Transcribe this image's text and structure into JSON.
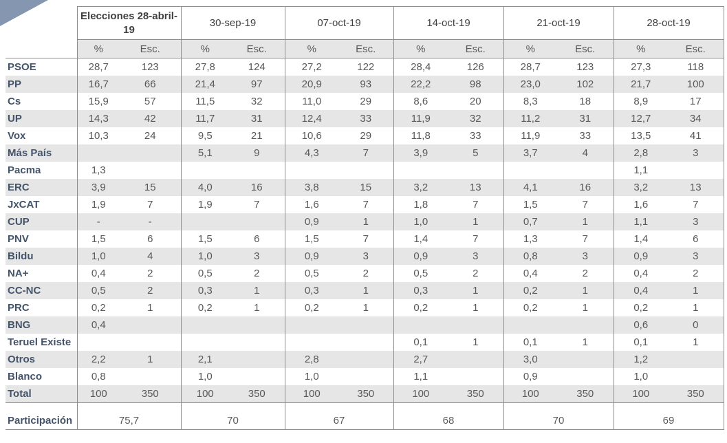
{
  "header": {
    "dates": [
      "Elecciones 28-abril-19",
      "30-sep-19",
      "07-oct-19",
      "14-oct-19",
      "21-oct-19",
      "28-oct-19"
    ],
    "pct_label": "%",
    "seats_label": "Esc."
  },
  "rows": [
    {
      "party": "PSOE",
      "cells": [
        "28,7",
        "123",
        "27,8",
        "124",
        "27,2",
        "122",
        "28,4",
        "126",
        "28,7",
        "123",
        "27,3",
        "118"
      ]
    },
    {
      "party": "PP",
      "cells": [
        "16,7",
        "66",
        "21,4",
        "97",
        "20,9",
        "93",
        "22,2",
        "98",
        "23,0",
        "102",
        "21,7",
        "100"
      ]
    },
    {
      "party": "Cs",
      "cells": [
        "15,9",
        "57",
        "11,5",
        "32",
        "11,0",
        "29",
        "8,6",
        "20",
        "8,3",
        "18",
        "8,9",
        "17"
      ]
    },
    {
      "party": "UP",
      "cells": [
        "14,3",
        "42",
        "11,7",
        "31",
        "12,4",
        "33",
        "11,9",
        "32",
        "11,2",
        "31",
        "12,7",
        "34"
      ]
    },
    {
      "party": "Vox",
      "cells": [
        "10,3",
        "24",
        "9,5",
        "21",
        "10,6",
        "29",
        "11,8",
        "33",
        "11,9",
        "33",
        "13,5",
        "41"
      ]
    },
    {
      "party": "Más País",
      "cells": [
        "",
        "",
        "5,1",
        "9",
        "4,3",
        "7",
        "3,9",
        "5",
        "3,7",
        "4",
        "2,8",
        "3"
      ]
    },
    {
      "party": "Pacma",
      "cells": [
        "1,3",
        "",
        "",
        "",
        "",
        "",
        "",
        "",
        "",
        "",
        "1,1",
        ""
      ]
    },
    {
      "party": "ERC",
      "cells": [
        "3,9",
        "15",
        "4,0",
        "16",
        "3,8",
        "15",
        "3,2",
        "13",
        "4,1",
        "16",
        "3,2",
        "13"
      ]
    },
    {
      "party": "JxCAT",
      "cells": [
        "1,9",
        "7",
        "1,9",
        "7",
        "1,6",
        "7",
        "1,8",
        "7",
        "1,5",
        "7",
        "1,6",
        "7"
      ]
    },
    {
      "party": "CUP",
      "cells": [
        "-",
        "-",
        "",
        "",
        "0,9",
        "1",
        "1,0",
        "1",
        "0,7",
        "1",
        "1,1",
        "3"
      ]
    },
    {
      "party": "PNV",
      "cells": [
        "1,5",
        "6",
        "1,5",
        "6",
        "1,5",
        "7",
        "1,4",
        "7",
        "1,3",
        "7",
        "1,4",
        "6"
      ]
    },
    {
      "party": "Bildu",
      "cells": [
        "1,0",
        "4",
        "1,0",
        "3",
        "0,9",
        "3",
        "0,9",
        "3",
        "0,8",
        "3",
        "0,9",
        "3"
      ]
    },
    {
      "party": "NA+",
      "cells": [
        "0,4",
        "2",
        "0,5",
        "2",
        "0,5",
        "2",
        "0,5",
        "2",
        "0,4",
        "2",
        "0,4",
        "2"
      ]
    },
    {
      "party": "CC-NC",
      "cells": [
        "0,5",
        "2",
        "0,3",
        "1",
        "0,3",
        "1",
        "0,3",
        "1",
        "0,2",
        "1",
        "0,4",
        "1"
      ]
    },
    {
      "party": "PRC",
      "cells": [
        "0,2",
        "1",
        "0,2",
        "1",
        "0,2",
        "1",
        "0,2",
        "1",
        "0,2",
        "1",
        "0,2",
        "1"
      ]
    },
    {
      "party": "BNG",
      "cells": [
        "0,4",
        "",
        "",
        "",
        "",
        "",
        "",
        "",
        "",
        "",
        "0,6",
        "0"
      ]
    },
    {
      "party": "Teruel Existe",
      "cells": [
        "",
        "",
        "",
        "",
        "",
        "",
        "0,1",
        "1",
        "0,1",
        "1",
        "0,1",
        "1"
      ]
    },
    {
      "party": "Otros",
      "cells": [
        "2,2",
        "1",
        "2,1",
        "",
        "2,8",
        "",
        "2,7",
        "",
        "3,0",
        "",
        "1,2",
        ""
      ]
    },
    {
      "party": "Blanco",
      "cells": [
        "0,8",
        "",
        "1,0",
        "",
        "1,0",
        "",
        "1,1",
        "",
        "0,9",
        "",
        "1,0",
        ""
      ]
    },
    {
      "party": "Total",
      "cells": [
        "100",
        "350",
        "100",
        "350",
        "100",
        "350",
        "100",
        "350",
        "100",
        "350",
        "100",
        "350"
      ]
    }
  ],
  "participation": {
    "label": "Participación",
    "values": [
      "75,7",
      "70",
      "67",
      "68",
      "70",
      "69"
    ]
  },
  "colors": {
    "header_gray": "#e7e6e6",
    "party_label": "#44546a",
    "corner_accent": "#8496b0"
  }
}
